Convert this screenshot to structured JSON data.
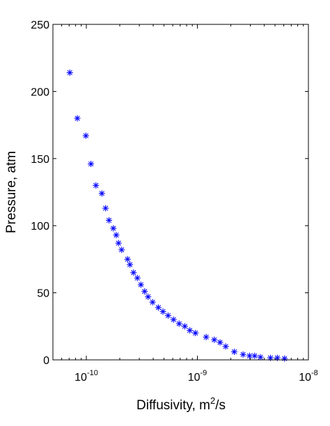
{
  "chart_data": {
    "type": "scatter",
    "title": "",
    "xlabel": {
      "base": "Diffusivity, m",
      "sup": "2",
      "tail": "/s"
    },
    "ylabel": "Pressure, atm",
    "x_scale": "log",
    "xlim": [
      5e-11,
      1e-08
    ],
    "ylim": [
      0,
      250
    ],
    "grid": false,
    "legend": "none",
    "x_ticks": [
      {
        "value": 1e-10,
        "base": "10",
        "exp": "-10"
      },
      {
        "value": 1e-09,
        "base": "10",
        "exp": "-9"
      },
      {
        "value": 1e-08,
        "base": "10",
        "exp": "-8"
      }
    ],
    "y_ticks": [
      {
        "value": 0,
        "label": "0"
      },
      {
        "value": 50,
        "label": "50"
      },
      {
        "value": 100,
        "label": "100"
      },
      {
        "value": 150,
        "label": "150"
      },
      {
        "value": 200,
        "label": "200"
      },
      {
        "value": 250,
        "label": "250"
      }
    ],
    "marker": "asterisk",
    "color": "#0000ff",
    "series": [
      {
        "points": [
          [
            7.1e-11,
            214
          ],
          [
            8.3e-11,
            180
          ],
          [
            9.9e-11,
            167
          ],
          [
            1.1e-10,
            146
          ],
          [
            1.22e-10,
            130
          ],
          [
            1.38e-10,
            124
          ],
          [
            1.49e-10,
            113
          ],
          [
            1.6e-10,
            104
          ],
          [
            1.75e-10,
            98
          ],
          [
            1.86e-10,
            93
          ],
          [
            1.95e-10,
            87
          ],
          [
            2.08e-10,
            82
          ],
          [
            2.35e-10,
            75
          ],
          [
            2.47e-10,
            71
          ],
          [
            2.66e-10,
            65
          ],
          [
            2.88e-10,
            61
          ],
          [
            3.1e-10,
            56
          ],
          [
            3.35e-10,
            51
          ],
          [
            3.6e-10,
            47
          ],
          [
            3.95e-10,
            43
          ],
          [
            4.45e-10,
            39
          ],
          [
            4.9e-10,
            36
          ],
          [
            5.45e-10,
            33
          ],
          [
            6.1e-10,
            30
          ],
          [
            6.85e-10,
            27
          ],
          [
            7.7e-10,
            25
          ],
          [
            8.55e-10,
            22
          ],
          [
            9.6e-10,
            20
          ],
          [
            1.2e-09,
            17
          ],
          [
            1.42e-09,
            15
          ],
          [
            1.6e-09,
            13
          ],
          [
            1.8e-09,
            10
          ],
          [
            2.15e-09,
            6
          ],
          [
            2.58e-09,
            4
          ],
          [
            2.95e-09,
            3
          ],
          [
            3.28e-09,
            3
          ],
          [
            3.7e-09,
            2
          ],
          [
            4.55e-09,
            1.5
          ],
          [
            5.25e-09,
            1.5
          ],
          [
            6.1e-09,
            1
          ]
        ]
      }
    ]
  }
}
